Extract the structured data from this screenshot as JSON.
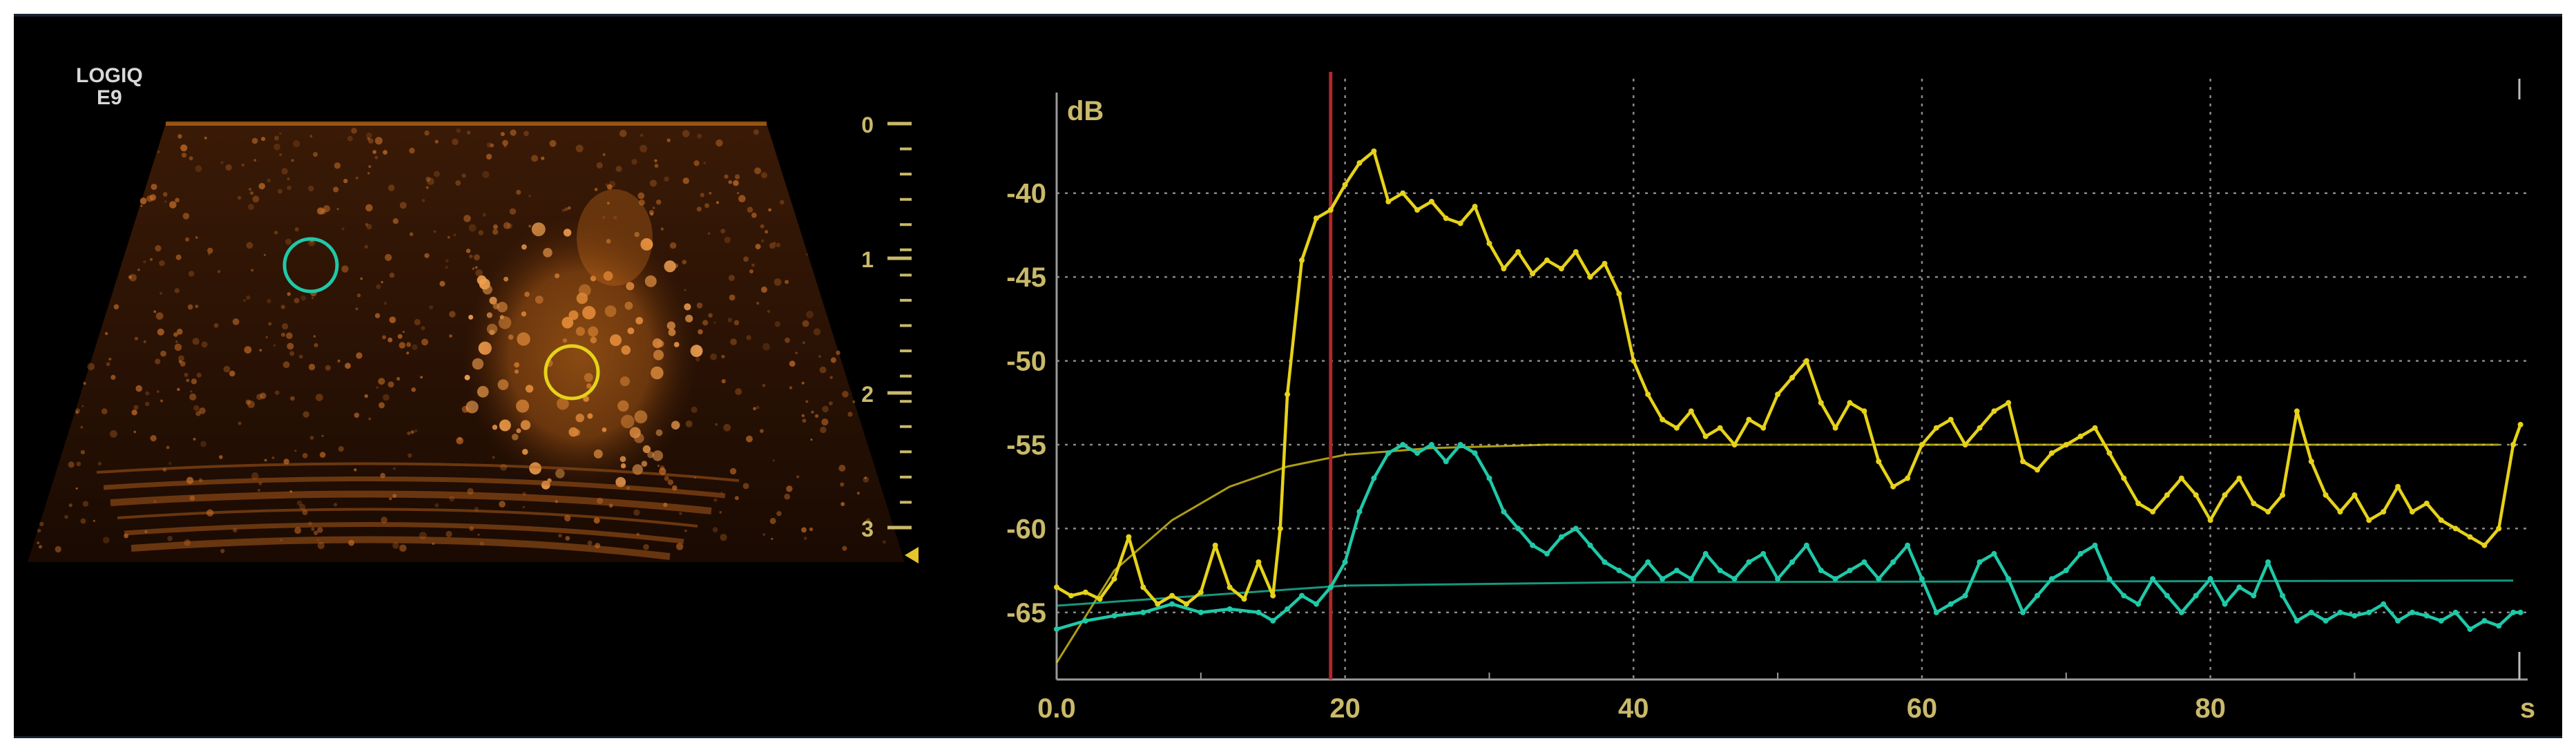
{
  "device": {
    "brand_line1": "LOGIQ",
    "brand_line2": "E9"
  },
  "depth_scale": {
    "ticks": [
      "0",
      "1",
      "2",
      "3"
    ]
  },
  "roi_markers": [
    {
      "name": "roi-cyan",
      "color": "#1fc9a8"
    },
    {
      "name": "roi-yellow",
      "color": "#e6d21a"
    }
  ],
  "chart_data": {
    "type": "line",
    "title": "",
    "ylabel": "dB",
    "xlabel": "s",
    "x_ticks": [
      "0.0",
      "20",
      "40",
      "60",
      "80"
    ],
    "y_ticks": [
      "-40",
      "-45",
      "-50",
      "-55",
      "-60",
      "-65"
    ],
    "xlim": [
      0,
      102
    ],
    "ylim": [
      -69,
      -34
    ],
    "grid": true,
    "marker_line": {
      "x": 19,
      "color": "#b0282a"
    },
    "series": [
      {
        "color": "#e6d21a",
        "raw": [
          [
            0,
            -63.5
          ],
          [
            1,
            -64
          ],
          [
            2,
            -63.8
          ],
          [
            3,
            -64.2
          ],
          [
            4,
            -63
          ],
          [
            5,
            -60.5
          ],
          [
            6,
            -63.5
          ],
          [
            7,
            -64.5
          ],
          [
            8,
            -64
          ],
          [
            9,
            -64.5
          ],
          [
            10,
            -63.8
          ],
          [
            11,
            -61
          ],
          [
            12,
            -63.5
          ],
          [
            13,
            -64.2
          ],
          [
            14,
            -62
          ],
          [
            15,
            -64
          ],
          [
            15.5,
            -60
          ],
          [
            16,
            -52
          ],
          [
            17,
            -44
          ],
          [
            18,
            -41.5
          ],
          [
            19,
            -41
          ],
          [
            20,
            -39.5
          ],
          [
            21,
            -38.2
          ],
          [
            22,
            -37.5
          ],
          [
            23,
            -40.5
          ],
          [
            24,
            -40
          ],
          [
            25,
            -41
          ],
          [
            26,
            -40.5
          ],
          [
            27,
            -41.5
          ],
          [
            28,
            -41.8
          ],
          [
            29,
            -40.8
          ],
          [
            30,
            -43
          ],
          [
            31,
            -44.5
          ],
          [
            32,
            -43.5
          ],
          [
            33,
            -44.8
          ],
          [
            34,
            -44
          ],
          [
            35,
            -44.5
          ],
          [
            36,
            -43.5
          ],
          [
            37,
            -45
          ],
          [
            38,
            -44.2
          ],
          [
            39,
            -46
          ],
          [
            40,
            -50
          ],
          [
            41,
            -52
          ],
          [
            42,
            -53.5
          ],
          [
            43,
            -54
          ],
          [
            44,
            -53
          ],
          [
            45,
            -54.5
          ],
          [
            46,
            -54
          ],
          [
            47,
            -55
          ],
          [
            48,
            -53.5
          ],
          [
            49,
            -54
          ],
          [
            50,
            -52
          ],
          [
            51,
            -51
          ],
          [
            52,
            -50
          ],
          [
            53,
            -52.5
          ],
          [
            54,
            -54
          ],
          [
            55,
            -52.5
          ],
          [
            56,
            -53
          ],
          [
            57,
            -56
          ],
          [
            58,
            -57.5
          ],
          [
            59,
            -57
          ],
          [
            60,
            -55
          ],
          [
            61,
            -54
          ],
          [
            62,
            -53.5
          ],
          [
            63,
            -55
          ],
          [
            64,
            -54
          ],
          [
            65,
            -53
          ],
          [
            66,
            -52.5
          ],
          [
            67,
            -56
          ],
          [
            68,
            -56.5
          ],
          [
            69,
            -55.5
          ],
          [
            70,
            -55
          ],
          [
            71,
            -54.5
          ],
          [
            72,
            -54
          ],
          [
            73,
            -55.5
          ],
          [
            74,
            -57
          ],
          [
            75,
            -58.5
          ],
          [
            76,
            -59
          ],
          [
            77,
            -58
          ],
          [
            78,
            -57
          ],
          [
            79,
            -58
          ],
          [
            80,
            -59.5
          ],
          [
            81,
            -58
          ],
          [
            82,
            -57
          ],
          [
            83,
            -58.5
          ],
          [
            84,
            -59
          ],
          [
            85,
            -58
          ],
          [
            86,
            -53
          ],
          [
            87,
            -56
          ],
          [
            88,
            -58
          ],
          [
            89,
            -59
          ],
          [
            90,
            -58
          ],
          [
            91,
            -59.5
          ],
          [
            92,
            -59
          ],
          [
            93,
            -57.5
          ],
          [
            94,
            -59
          ],
          [
            95,
            -58.5
          ],
          [
            96,
            -59.5
          ],
          [
            97,
            -60
          ],
          [
            98,
            -60.5
          ],
          [
            99,
            -61
          ],
          [
            100,
            -60
          ],
          [
            101,
            -55
          ],
          [
            101.5,
            -53.8
          ]
        ],
        "fit": [
          [
            0,
            -68
          ],
          [
            4,
            -62.5
          ],
          [
            8,
            -59.5
          ],
          [
            12,
            -57.5
          ],
          [
            16,
            -56.3
          ],
          [
            20,
            -55.6
          ],
          [
            26,
            -55.2
          ],
          [
            34,
            -55
          ],
          [
            100,
            -55
          ]
        ]
      },
      {
        "color": "#1fc9a8",
        "raw": [
          [
            0,
            -66
          ],
          [
            2,
            -65.5
          ],
          [
            4,
            -65.2
          ],
          [
            6,
            -65
          ],
          [
            8,
            -64.5
          ],
          [
            10,
            -65
          ],
          [
            12,
            -64.8
          ],
          [
            14,
            -65
          ],
          [
            15,
            -65.5
          ],
          [
            16,
            -64.8
          ],
          [
            17,
            -64
          ],
          [
            18,
            -64.5
          ],
          [
            19,
            -63.5
          ],
          [
            20,
            -62
          ],
          [
            21,
            -59
          ],
          [
            22,
            -57
          ],
          [
            23,
            -55.5
          ],
          [
            24,
            -55
          ],
          [
            25,
            -55.5
          ],
          [
            26,
            -55
          ],
          [
            27,
            -56
          ],
          [
            28,
            -55
          ],
          [
            29,
            -55.5
          ],
          [
            30,
            -57
          ],
          [
            31,
            -59
          ],
          [
            32,
            -60
          ],
          [
            33,
            -61
          ],
          [
            34,
            -61.5
          ],
          [
            35,
            -60.5
          ],
          [
            36,
            -60
          ],
          [
            37,
            -61
          ],
          [
            38,
            -62
          ],
          [
            39,
            -62.5
          ],
          [
            40,
            -63
          ],
          [
            41,
            -62
          ],
          [
            42,
            -63
          ],
          [
            43,
            -62.5
          ],
          [
            44,
            -63
          ],
          [
            45,
            -61.5
          ],
          [
            46,
            -62.5
          ],
          [
            47,
            -63
          ],
          [
            48,
            -62
          ],
          [
            49,
            -61.5
          ],
          [
            50,
            -63
          ],
          [
            51,
            -62
          ],
          [
            52,
            -61
          ],
          [
            53,
            -62.5
          ],
          [
            54,
            -63
          ],
          [
            55,
            -62.5
          ],
          [
            56,
            -62
          ],
          [
            57,
            -63
          ],
          [
            58,
            -62
          ],
          [
            59,
            -61
          ],
          [
            60,
            -63
          ],
          [
            61,
            -65
          ],
          [
            62,
            -64.5
          ],
          [
            63,
            -64
          ],
          [
            64,
            -62
          ],
          [
            65,
            -61.5
          ],
          [
            66,
            -63
          ],
          [
            67,
            -65
          ],
          [
            68,
            -64
          ],
          [
            69,
            -63
          ],
          [
            70,
            -62.5
          ],
          [
            71,
            -61.5
          ],
          [
            72,
            -61
          ],
          [
            73,
            -63
          ],
          [
            74,
            -64
          ],
          [
            75,
            -64.5
          ],
          [
            76,
            -63
          ],
          [
            77,
            -64
          ],
          [
            78,
            -65
          ],
          [
            79,
            -64
          ],
          [
            80,
            -63
          ],
          [
            81,
            -64.5
          ],
          [
            82,
            -63.5
          ],
          [
            83,
            -64
          ],
          [
            84,
            -62
          ],
          [
            85,
            -64
          ],
          [
            86,
            -65.5
          ],
          [
            87,
            -65
          ],
          [
            88,
            -65.5
          ],
          [
            89,
            -65
          ],
          [
            90,
            -65.2
          ],
          [
            91,
            -65
          ],
          [
            92,
            -64.5
          ],
          [
            93,
            -65.5
          ],
          [
            94,
            -65
          ],
          [
            95,
            -65.2
          ],
          [
            96,
            -65.5
          ],
          [
            97,
            -65
          ],
          [
            98,
            -66
          ],
          [
            99,
            -65.5
          ],
          [
            100,
            -65.8
          ],
          [
            101,
            -65
          ],
          [
            101.5,
            -65
          ]
        ],
        "fit": [
          [
            0,
            -64.6
          ],
          [
            10,
            -64
          ],
          [
            20,
            -63.4
          ],
          [
            40,
            -63.2
          ],
          [
            101,
            -63.1
          ]
        ]
      }
    ]
  }
}
